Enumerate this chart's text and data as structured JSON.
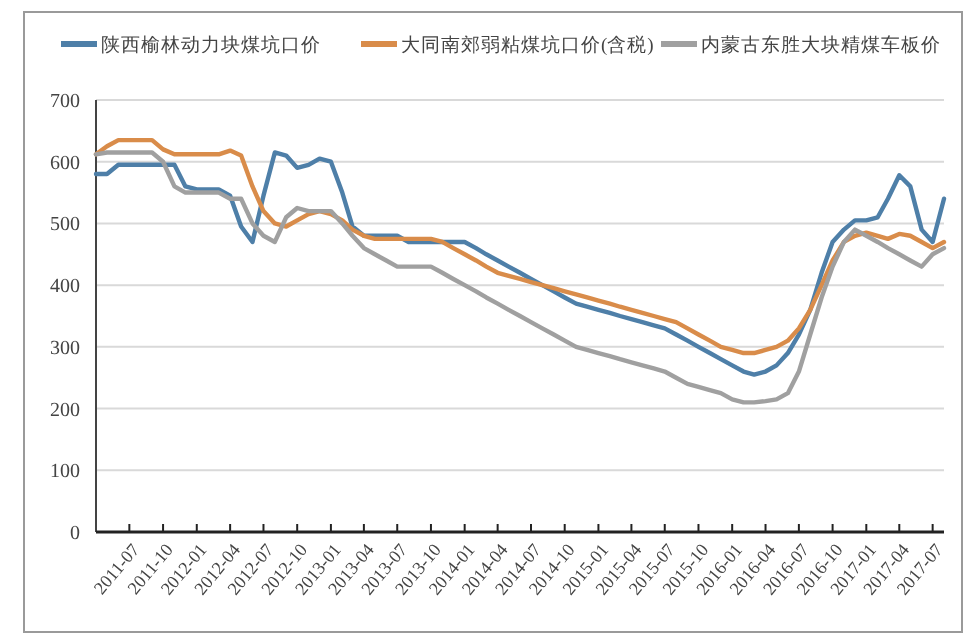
{
  "chart_data": {
    "type": "line",
    "x": [
      "2011-04",
      "2011-05",
      "2011-06",
      "2011-07",
      "2011-08",
      "2011-09",
      "2011-10",
      "2011-11",
      "2011-12",
      "2012-01",
      "2012-02",
      "2012-03",
      "2012-04",
      "2012-05",
      "2012-06",
      "2012-07",
      "2012-08",
      "2012-09",
      "2012-10",
      "2012-11",
      "2012-12",
      "2013-01",
      "2013-02",
      "2013-03",
      "2013-04",
      "2013-05",
      "2013-06",
      "2013-07",
      "2013-08",
      "2013-09",
      "2013-10",
      "2013-11",
      "2013-12",
      "2014-01",
      "2014-02",
      "2014-03",
      "2014-04",
      "2014-05",
      "2014-06",
      "2014-07",
      "2014-08",
      "2014-09",
      "2014-10",
      "2014-11",
      "2014-12",
      "2015-01",
      "2015-02",
      "2015-03",
      "2015-04",
      "2015-05",
      "2015-06",
      "2015-07",
      "2015-08",
      "2015-09",
      "2015-10",
      "2015-11",
      "2015-12",
      "2016-01",
      "2016-02",
      "2016-03",
      "2016-04",
      "2016-05",
      "2016-06",
      "2016-07",
      "2016-08",
      "2016-09",
      "2016-10",
      "2016-11",
      "2016-12",
      "2017-01",
      "2017-02",
      "2017-03",
      "2017-04",
      "2017-05",
      "2017-06",
      "2017-07",
      "2017-08"
    ],
    "series": [
      {
        "name": "陕西榆林动力块煤坑口价",
        "color": "#4e7fa8",
        "values": [
          580,
          580,
          595,
          595,
          595,
          595,
          595,
          595,
          560,
          555,
          555,
          555,
          545,
          495,
          470,
          545,
          615,
          610,
          590,
          595,
          605,
          600,
          550,
          495,
          480,
          480,
          480,
          480,
          470,
          470,
          470,
          470,
          470,
          470,
          460,
          450,
          440,
          430,
          420,
          410,
          400,
          390,
          380,
          370,
          365,
          360,
          355,
          350,
          345,
          340,
          335,
          330,
          320,
          310,
          300,
          290,
          280,
          270,
          260,
          255,
          260,
          270,
          290,
          320,
          360,
          420,
          470,
          490,
          505,
          505,
          510,
          540,
          578,
          560,
          490,
          470,
          540
        ]
      },
      {
        "name": "大同南郊弱粘煤坑口价(含税)",
        "color": "#d98c4a",
        "values": [
          612,
          625,
          635,
          635,
          635,
          635,
          620,
          612,
          612,
          612,
          612,
          612,
          618,
          610,
          560,
          520,
          500,
          495,
          505,
          515,
          520,
          515,
          505,
          490,
          480,
          475,
          475,
          475,
          475,
          475,
          475,
          470,
          460,
          450,
          440,
          430,
          420,
          415,
          410,
          405,
          400,
          395,
          390,
          385,
          380,
          375,
          370,
          365,
          360,
          355,
          350,
          345,
          340,
          330,
          320,
          310,
          300,
          295,
          290,
          290,
          295,
          300,
          310,
          330,
          360,
          400,
          440,
          470,
          480,
          485,
          480,
          475,
          483,
          480,
          470,
          460,
          470
        ]
      },
      {
        "name": "内蒙古东胜大块精煤车板价",
        "color": "#a0a0a0",
        "values": [
          612,
          615,
          615,
          615,
          615,
          615,
          600,
          560,
          550,
          550,
          550,
          550,
          540,
          540,
          500,
          480,
          470,
          510,
          525,
          520,
          520,
          520,
          500,
          480,
          460,
          450,
          440,
          430,
          430,
          430,
          430,
          420,
          410,
          400,
          390,
          380,
          370,
          360,
          350,
          340,
          330,
          320,
          310,
          300,
          295,
          290,
          285,
          280,
          275,
          270,
          265,
          260,
          250,
          240,
          235,
          230,
          225,
          215,
          210,
          210,
          212,
          215,
          225,
          260,
          320,
          380,
          430,
          470,
          490,
          480,
          470,
          460,
          450,
          440,
          430,
          450,
          460
        ]
      }
    ],
    "xlim": [
      "2011-04",
      "2017-08"
    ],
    "xticks": [
      "2011-07",
      "2011-10",
      "2012-01",
      "2012-04",
      "2012-07",
      "2012-10",
      "2013-01",
      "2013-04",
      "2013-07",
      "2013-10",
      "2014-01",
      "2014-04",
      "2014-07",
      "2014-10",
      "2015-01",
      "2015-04",
      "2015-07",
      "2015-10",
      "2016-01",
      "2016-04",
      "2016-07",
      "2016-10",
      "2017-01",
      "2017-04",
      "2017-07"
    ],
    "ylim": [
      0,
      700
    ],
    "yticks": [
      0,
      100,
      200,
      300,
      400,
      500,
      600,
      700
    ],
    "grid": "y",
    "legend": "top",
    "marker": "none",
    "line_style": "solid"
  }
}
